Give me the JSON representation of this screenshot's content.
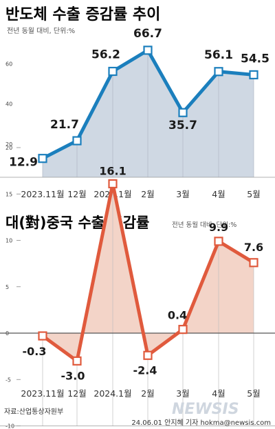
{
  "chart_data": [
    {
      "type": "area",
      "title": "반도체 수출 증감률 추이",
      "subtitle": "전년 동월 대비, 단위:%",
      "categories": [
        "2023.11월",
        "12월",
        "2024.1월",
        "2월",
        "3월",
        "4월",
        "5월"
      ],
      "series": [
        {
          "values": [
            12.9,
            21.7,
            56.2,
            66.7,
            35.7,
            56.1,
            54.5
          ]
        }
      ],
      "value_labels": [
        "12.9",
        "21.7",
        "56.2",
        "66.7",
        "35.7",
        "56.1",
        "54.5"
      ],
      "yticks": [
        20,
        40,
        60
      ],
      "ylim": [
        5,
        75
      ],
      "grid": false,
      "colors": {
        "line": "#1b7fbd",
        "fill": "#cfd8e3",
        "marker_fill": "#ffffff"
      }
    },
    {
      "type": "area",
      "title": "대(對)중국 수출 증감률",
      "subtitle": "전년 동월 대비, 단위:%",
      "categories": [
        "2023.11월",
        "12월",
        "2024.1월",
        "2월",
        "3월",
        "4월",
        "5월"
      ],
      "series": [
        {
          "values": [
            -0.3,
            -3.0,
            16.1,
            -2.4,
            0.4,
            9.9,
            7.6
          ]
        }
      ],
      "value_labels": [
        "-0.3",
        "-3.0",
        "16.1",
        "-2.4",
        "0.4",
        "9.9",
        "7.6"
      ],
      "yticks": [
        20,
        15,
        10,
        5,
        0,
        -5,
        -10
      ],
      "ylim": [
        -10,
        20
      ],
      "grid": false,
      "colors": {
        "line": "#e05a3d",
        "fill": "#f3d4c8",
        "marker_fill": "#ffffff",
        "axis": "#555555"
      }
    }
  ],
  "footer": {
    "source": "자료:산업통상자원부",
    "credit": "24.06.01  안지혜 기자  hokma@newsis.com",
    "watermark": "NEWSIS"
  }
}
